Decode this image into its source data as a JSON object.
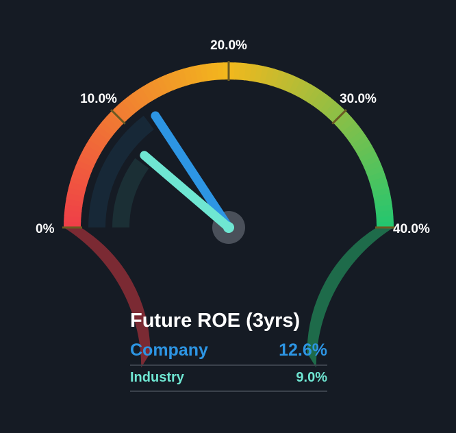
{
  "chart_data": {
    "type": "gauge",
    "title": "Future ROE (3yrs)",
    "min": 0,
    "max": 40,
    "tick_labels": [
      "0%",
      "10.0%",
      "20.0%",
      "30.0%",
      "40.0%"
    ],
    "ticks": [
      0,
      10,
      20,
      30,
      40
    ],
    "series": [
      {
        "name": "Company",
        "label": "12.6%",
        "value": 12.6,
        "color": "#2d95e3"
      },
      {
        "name": "Industry",
        "label": "9.0%",
        "value": 9.0,
        "color": "#6fe6d2"
      }
    ],
    "colors": {
      "gauge_start": "#ef3e48",
      "gauge_mid": "#f2b81d",
      "gauge_end": "#22c670",
      "low_band": "#7b2a33",
      "high_band": "#1e6b4a"
    }
  }
}
